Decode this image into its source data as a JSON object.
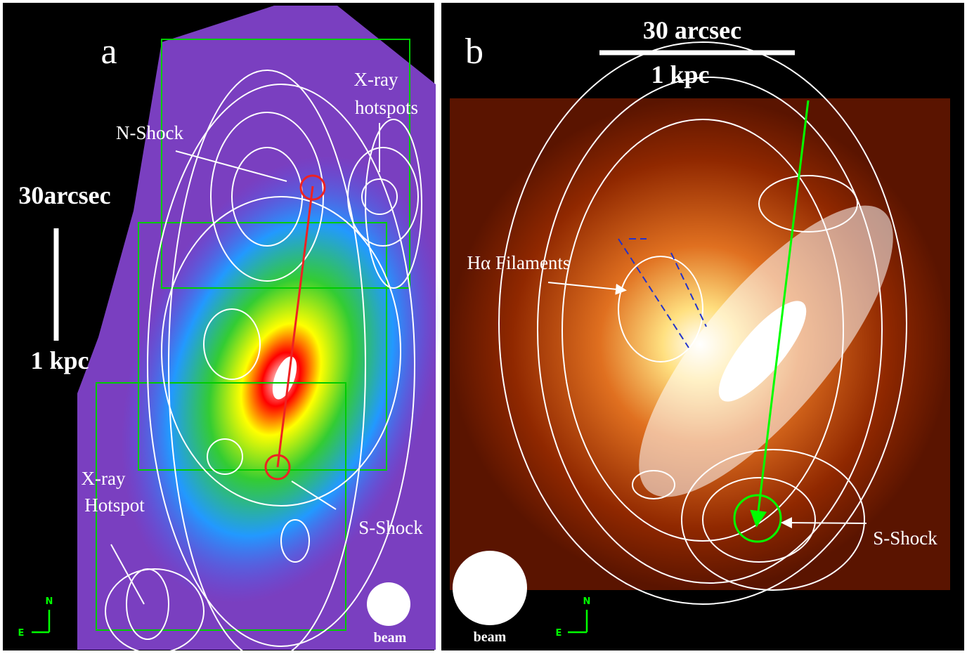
{
  "panels": [
    {
      "label": "a",
      "scale_bar": {
        "top": "30arcsec",
        "bottom": "1 kpc"
      },
      "annotations": {
        "n_shock": [
          "N-Shock"
        ],
        "xray_hotspots": [
          "X-ray",
          "hotspots"
        ],
        "xray_hotspot": [
          "X-ray",
          "Hotspot"
        ],
        "s_shock": [
          "S-Shock"
        ]
      },
      "beam": "beam",
      "compass": {
        "north": "N",
        "east": "E"
      }
    },
    {
      "label": "b",
      "scale_bar": {
        "top": "30 arcsec",
        "bottom": "1 kpc"
      },
      "annotations": {
        "ha_filaments": [
          "Hα Filaments"
        ],
        "s_shock": [
          "S-Shock"
        ]
      },
      "beam": "beam",
      "compass": {
        "north": "N",
        "east": "E"
      }
    }
  ]
}
